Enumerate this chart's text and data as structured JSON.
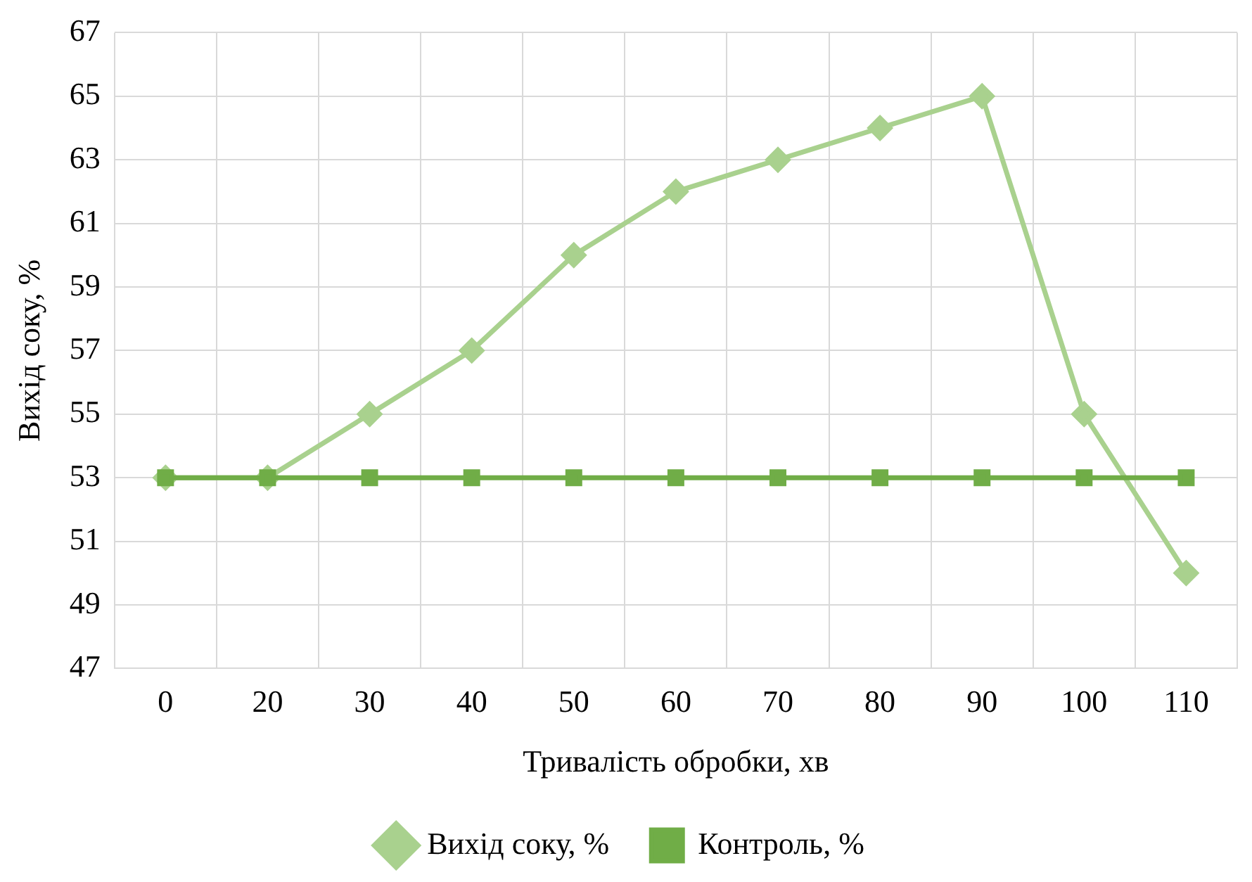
{
  "chart_data": {
    "type": "line",
    "xlabel": "Тривалість обробки, хв",
    "ylabel": "Вихід соку, %",
    "categories": [
      "0",
      "20",
      "30",
      "40",
      "50",
      "60",
      "70",
      "80",
      "90",
      "100",
      "110"
    ],
    "series": [
      {
        "name": "Вихід соку, %",
        "color": "#a9d18e",
        "marker": "diamond",
        "values": [
          53,
          53,
          55,
          57,
          60,
          62,
          63,
          64,
          65,
          55,
          50
        ]
      },
      {
        "name": "Контроль, %",
        "color": "#70ad47",
        "marker": "square",
        "values": [
          53,
          53,
          53,
          53,
          53,
          53,
          53,
          53,
          53,
          53,
          53
        ]
      }
    ],
    "ylim": [
      47,
      67
    ],
    "yticks": [
      47,
      49,
      51,
      53,
      55,
      57,
      59,
      61,
      63,
      65,
      67
    ],
    "grid": true,
    "legend": "bottom",
    "line_style": "solid"
  }
}
